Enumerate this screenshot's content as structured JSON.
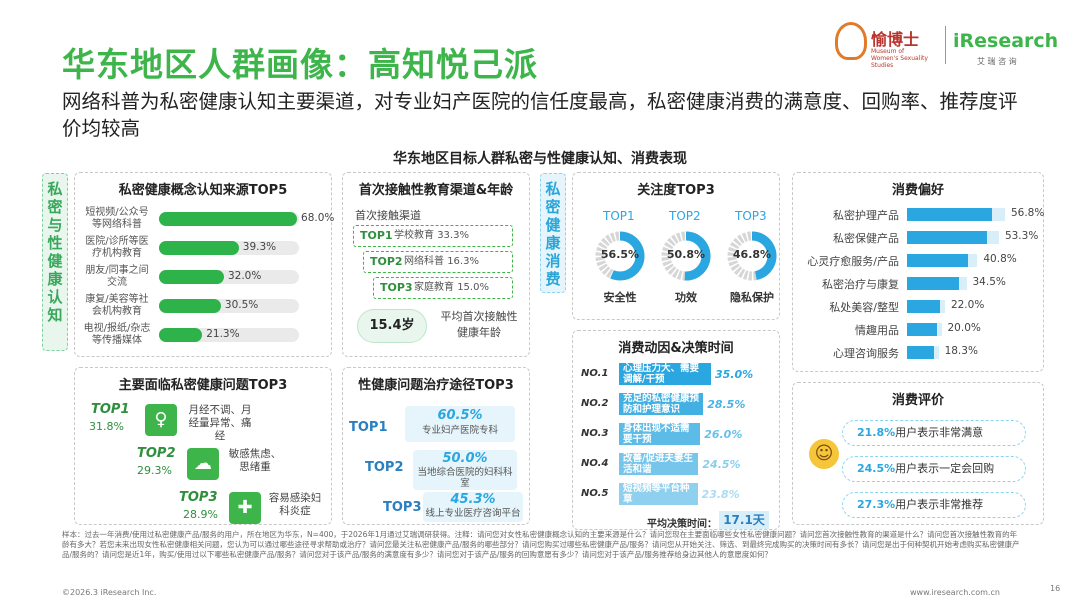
{
  "header": {
    "title": "华东地区人群画像：高知悦己派",
    "subtitle": "网络科普为私密健康认知主要渠道，对专业妇产医院的信任度最高，私密健康消费的满意度、回购率、推荐度评价均较高",
    "chart_title": "华东地区目标人群私密与性健康认知、消费表现"
  },
  "logos": {
    "brand1": "愉博士",
    "brand1_sub": "Museum of Women's Sexuality Studies",
    "brand2": "iResearch",
    "brand2_sub": "艾 瑞 咨 询"
  },
  "side_tags": {
    "left": "私密与性健康认知",
    "right": "私密健康消费"
  },
  "colors": {
    "green": "#3db54a",
    "blue": "#2aa6e0"
  },
  "chart_data": [
    {
      "type": "bar",
      "title": "私密健康概念认知来源TOP5",
      "categories": [
        "短视频/公众号等网络科普",
        "医院/诊所等医疗机构教育",
        "朋友/同事之间交流",
        "康复/美容等社会机构教育",
        "电视/报纸/杂志等传播媒体"
      ],
      "values": [
        68.0,
        39.3,
        32.0,
        30.5,
        21.3
      ],
      "labels": [
        "68.0%",
        "39.3%",
        "32.0%",
        "30.5%",
        "21.3%"
      ]
    },
    {
      "type": "table",
      "title": "首次接触性教育渠道&年龄",
      "section": "首次接触渠道",
      "items": [
        {
          "rank": "TOP1",
          "name": "学校教育",
          "value": "33.3%"
        },
        {
          "rank": "TOP2",
          "name": "网络科普",
          "value": "16.3%"
        },
        {
          "rank": "TOP3",
          "name": "家庭教育",
          "value": "15.0%"
        }
      ],
      "age": "15.4岁",
      "age_label": "平均首次接触性健康年龄"
    },
    {
      "type": "table",
      "title": "主要面临私密健康问题TOP3",
      "items": [
        {
          "rank": "TOP1",
          "value": "31.8%",
          "text": "月经不调、月经量异常、痛经"
        },
        {
          "rank": "TOP2",
          "value": "29.3%",
          "text": "敏感焦虑、思绪重"
        },
        {
          "rank": "TOP3",
          "value": "28.9%",
          "text": "容易感染妇科炎症"
        }
      ]
    },
    {
      "type": "table",
      "title": "性健康问题治疗途径TOP3",
      "items": [
        {
          "rank": "TOP1",
          "value": "60.5%",
          "text": "专业妇产医院专科"
        },
        {
          "rank": "TOP2",
          "value": "50.0%",
          "text": "当地综合医院的妇科科室"
        },
        {
          "rank": "TOP3",
          "value": "45.3%",
          "text": "线上专业医疗咨询平台"
        }
      ]
    },
    {
      "type": "pie",
      "title": "关注度TOP3",
      "items": [
        {
          "rank": "TOP1",
          "name": "安全性",
          "value": 56.5,
          "label": "56.5%"
        },
        {
          "rank": "TOP2",
          "name": "功效",
          "value": 50.8,
          "label": "50.8%"
        },
        {
          "rank": "TOP3",
          "name": "隐私保护",
          "value": 46.8,
          "label": "46.8%"
        }
      ]
    },
    {
      "type": "bar",
      "title": "消费偏好",
      "categories": [
        "私密护理产品",
        "私密保健产品",
        "心灵疗愈服务/产品",
        "私密治疗与康复",
        "私处美容/整型",
        "情趣用品",
        "心理咨询服务"
      ],
      "values": [
        56.8,
        53.3,
        40.8,
        34.5,
        22.0,
        20.0,
        18.3
      ],
      "labels": [
        "56.8%",
        "53.3%",
        "40.8%",
        "34.5%",
        "22.0%",
        "20.0%",
        "18.3%"
      ]
    },
    {
      "type": "bar",
      "title": "消费动因&决策时间",
      "categories": [
        "NO.1",
        "NO.2",
        "NO.3",
        "NO.4",
        "NO.5"
      ],
      "texts": [
        "心理压力大、需要调解/干预",
        "充足的私密健康预防和护理意识",
        "身体出现不适需要干预",
        "改善/促进夫妻生活和谐",
        "短视频等平台种草"
      ],
      "values": [
        35.0,
        28.5,
        26.0,
        24.5,
        23.8
      ],
      "labels": [
        "35.0%",
        "28.5%",
        "26.0%",
        "24.5%",
        "23.8%"
      ],
      "decision_label": "平均决策时间：",
      "decision_value": "17.1天"
    },
    {
      "type": "table",
      "title": "消费评价",
      "items": [
        {
          "value": "21.8%",
          "text": "用户表示非常满意"
        },
        {
          "value": "24.5%",
          "text": "用户表示一定会回购"
        },
        {
          "value": "27.3%",
          "text": "用户表示非常推荐"
        }
      ]
    }
  ],
  "footnote": "样本：过去一年消费/使用过私密健康产品/服务的用户，所在地区为华东，N=400，于2026年1月通过艾瑞调研获得。注释：请问您对女性私密健康概念认知的主要来源是什么？请问您现在主要面临哪些女性私密健康问题？请问您首次接触性教育的渠道是什么？请问您首次接触性教育的年龄有多大？若您未来出现女性私密健康相关问题，您认为可以通过哪些途径寻求帮助或治疗？请问您最关注私密健康产品/服务的哪些部分？请问您购买过哪些私密健康产品/服务？请问您从开始关注、筛选、到最终完成购买的决策时间有多长？请问您是出于何种契机开始考虑购买私密健康产品/服务的？请问您是近1年，购买/使用过以下哪些私密健康产品/服务？请问您对于该产品/服务的满意度有多少？请问您对于该产品/服务的回购意愿有多少？请问您对于该产品/服务推荐给身边其他人的意愿度如何？",
  "footer": {
    "left": "©2026.3 iResearch Inc.",
    "right": "www.iresearch.com.cn",
    "page": "16"
  }
}
